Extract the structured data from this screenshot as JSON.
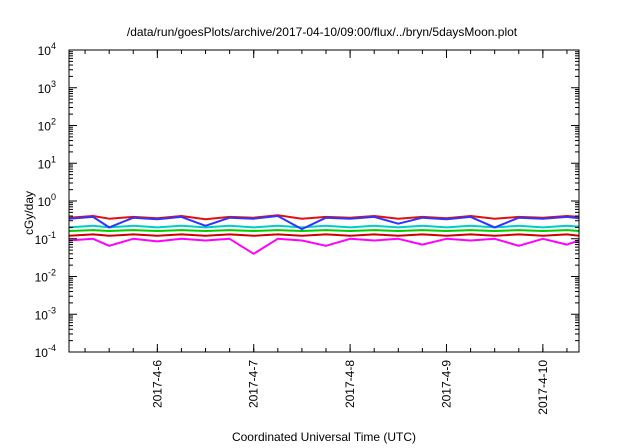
{
  "chart_data": {
    "type": "line",
    "title": "/data/run/goesPlots/archive/2017-04-10/09:00/flux/../bryn/5daysMoon.plot",
    "xlabel": "Coordinated Universal Time (UTC)",
    "ylabel": "cGy/day",
    "yscale": "log",
    "ylim": [
      0.0001,
      10000
    ],
    "xlim": [
      "2017-04-05T02:00",
      "2017-04-10T09:00"
    ],
    "grid": false,
    "legend": "none",
    "y_ticks": [
      {
        "base": "10",
        "exp": "-4",
        "value": 0.0001
      },
      {
        "base": "10",
        "exp": "-3",
        "value": 0.001
      },
      {
        "base": "10",
        "exp": "-2",
        "value": 0.01
      },
      {
        "base": "10",
        "exp": "-1",
        "value": 0.1
      },
      {
        "base": "10",
        "exp": "0",
        "value": 1
      },
      {
        "base": "10",
        "exp": "1",
        "value": 10
      },
      {
        "base": "10",
        "exp": "2",
        "value": 100
      },
      {
        "base": "10",
        "exp": "3",
        "value": 1000
      },
      {
        "base": "10",
        "exp": "4",
        "value": 10000
      }
    ],
    "x_ticks": [
      {
        "label": "2017-4-6",
        "date": "2017-04-06T00:00"
      },
      {
        "label": "2017-4-7",
        "date": "2017-04-07T00:00"
      },
      {
        "label": "2017-4-8",
        "date": "2017-04-08T00:00"
      },
      {
        "label": "2017-4-9",
        "date": "2017-04-09T00:00"
      },
      {
        "label": "2017-4-10",
        "date": "2017-04-10T00:00"
      }
    ],
    "series": [
      {
        "color": "#ff00ff",
        "x_dates": [
          "2017-04-05T02:00",
          "2017-04-05T08:00",
          "2017-04-05T12:00",
          "2017-04-05T18:00",
          "2017-04-06T00:00",
          "2017-04-06T06:00",
          "2017-04-06T12:00",
          "2017-04-06T18:00",
          "2017-04-07T00:00",
          "2017-04-07T06:00",
          "2017-04-07T12:00",
          "2017-04-07T18:00",
          "2017-04-08T00:00",
          "2017-04-08T06:00",
          "2017-04-08T12:00",
          "2017-04-08T18:00",
          "2017-04-09T00:00",
          "2017-04-09T06:00",
          "2017-04-09T12:00",
          "2017-04-09T18:00",
          "2017-04-10T00:00",
          "2017-04-10T06:00",
          "2017-04-10T09:00"
        ],
        "values": [
          0.09,
          0.1,
          0.065,
          0.1,
          0.085,
          0.1,
          0.09,
          0.1,
          0.04,
          0.1,
          0.09,
          0.065,
          0.1,
          0.09,
          0.1,
          0.07,
          0.1,
          0.09,
          0.1,
          0.065,
          0.1,
          0.07,
          0.09
        ]
      },
      {
        "color": "#cc0000",
        "x_dates": [
          "2017-04-05T02:00",
          "2017-04-05T08:00",
          "2017-04-05T12:00",
          "2017-04-05T18:00",
          "2017-04-06T00:00",
          "2017-04-06T06:00",
          "2017-04-06T12:00",
          "2017-04-06T18:00",
          "2017-04-07T00:00",
          "2017-04-07T06:00",
          "2017-04-07T12:00",
          "2017-04-07T18:00",
          "2017-04-08T00:00",
          "2017-04-08T06:00",
          "2017-04-08T12:00",
          "2017-04-08T18:00",
          "2017-04-09T00:00",
          "2017-04-09T06:00",
          "2017-04-09T12:00",
          "2017-04-09T18:00",
          "2017-04-10T00:00",
          "2017-04-10T06:00",
          "2017-04-10T09:00"
        ],
        "values": [
          0.12,
          0.13,
          0.12,
          0.13,
          0.12,
          0.13,
          0.12,
          0.13,
          0.12,
          0.13,
          0.12,
          0.13,
          0.12,
          0.13,
          0.12,
          0.13,
          0.12,
          0.13,
          0.12,
          0.13,
          0.12,
          0.13,
          0.12
        ]
      },
      {
        "color": "#00cc00",
        "x_dates": [
          "2017-04-05T02:00",
          "2017-04-05T08:00",
          "2017-04-05T12:00",
          "2017-04-05T18:00",
          "2017-04-06T00:00",
          "2017-04-06T06:00",
          "2017-04-06T12:00",
          "2017-04-06T18:00",
          "2017-04-07T00:00",
          "2017-04-07T06:00",
          "2017-04-07T12:00",
          "2017-04-07T18:00",
          "2017-04-08T00:00",
          "2017-04-08T06:00",
          "2017-04-08T12:00",
          "2017-04-08T18:00",
          "2017-04-09T00:00",
          "2017-04-09T06:00",
          "2017-04-09T12:00",
          "2017-04-09T18:00",
          "2017-04-10T00:00",
          "2017-04-10T06:00",
          "2017-04-10T09:00"
        ],
        "values": [
          0.16,
          0.17,
          0.16,
          0.17,
          0.16,
          0.17,
          0.16,
          0.17,
          0.16,
          0.17,
          0.16,
          0.17,
          0.16,
          0.17,
          0.16,
          0.17,
          0.16,
          0.17,
          0.16,
          0.17,
          0.16,
          0.17,
          0.16
        ]
      },
      {
        "color": "#00cccc",
        "x_dates": [
          "2017-04-05T02:00",
          "2017-04-05T08:00",
          "2017-04-05T12:00",
          "2017-04-05T18:00",
          "2017-04-06T00:00",
          "2017-04-06T06:00",
          "2017-04-06T12:00",
          "2017-04-06T18:00",
          "2017-04-07T00:00",
          "2017-04-07T06:00",
          "2017-04-07T12:00",
          "2017-04-07T18:00",
          "2017-04-08T00:00",
          "2017-04-08T06:00",
          "2017-04-08T12:00",
          "2017-04-08T18:00",
          "2017-04-09T00:00",
          "2017-04-09T06:00",
          "2017-04-09T12:00",
          "2017-04-09T18:00",
          "2017-04-10T00:00",
          "2017-04-10T06:00",
          "2017-04-10T09:00"
        ],
        "values": [
          0.2,
          0.22,
          0.2,
          0.22,
          0.2,
          0.22,
          0.2,
          0.22,
          0.2,
          0.22,
          0.2,
          0.22,
          0.2,
          0.22,
          0.2,
          0.22,
          0.2,
          0.22,
          0.2,
          0.22,
          0.2,
          0.22,
          0.21
        ]
      },
      {
        "color": "#dd1111",
        "x_dates": [
          "2017-04-05T02:00",
          "2017-04-05T08:00",
          "2017-04-05T12:00",
          "2017-04-05T18:00",
          "2017-04-06T00:00",
          "2017-04-06T06:00",
          "2017-04-06T12:00",
          "2017-04-06T18:00",
          "2017-04-07T00:00",
          "2017-04-07T06:00",
          "2017-04-07T12:00",
          "2017-04-07T18:00",
          "2017-04-08T00:00",
          "2017-04-08T06:00",
          "2017-04-08T12:00",
          "2017-04-08T18:00",
          "2017-04-09T00:00",
          "2017-04-09T06:00",
          "2017-04-09T12:00",
          "2017-04-09T18:00",
          "2017-04-10T00:00",
          "2017-04-10T06:00",
          "2017-04-10T09:00"
        ],
        "values": [
          0.36,
          0.4,
          0.34,
          0.38,
          0.35,
          0.4,
          0.33,
          0.38,
          0.36,
          0.42,
          0.34,
          0.38,
          0.36,
          0.4,
          0.34,
          0.38,
          0.35,
          0.4,
          0.34,
          0.38,
          0.36,
          0.4,
          0.38
        ]
      },
      {
        "color": "#3333ff",
        "x_dates": [
          "2017-04-05T02:00",
          "2017-04-05T08:00",
          "2017-04-05T12:00",
          "2017-04-05T18:00",
          "2017-04-06T00:00",
          "2017-04-06T06:00",
          "2017-04-06T12:00",
          "2017-04-06T18:00",
          "2017-04-07T00:00",
          "2017-04-07T06:00",
          "2017-04-07T12:00",
          "2017-04-07T18:00",
          "2017-04-08T00:00",
          "2017-04-08T06:00",
          "2017-04-08T12:00",
          "2017-04-08T18:00",
          "2017-04-09T00:00",
          "2017-04-09T06:00",
          "2017-04-09T12:00",
          "2017-04-09T18:00",
          "2017-04-10T00:00",
          "2017-04-10T06:00",
          "2017-04-10T09:00"
        ],
        "values": [
          0.34,
          0.38,
          0.2,
          0.36,
          0.33,
          0.38,
          0.22,
          0.36,
          0.34,
          0.4,
          0.18,
          0.36,
          0.34,
          0.38,
          0.25,
          0.36,
          0.33,
          0.38,
          0.2,
          0.36,
          0.34,
          0.38,
          0.35
        ]
      }
    ]
  }
}
